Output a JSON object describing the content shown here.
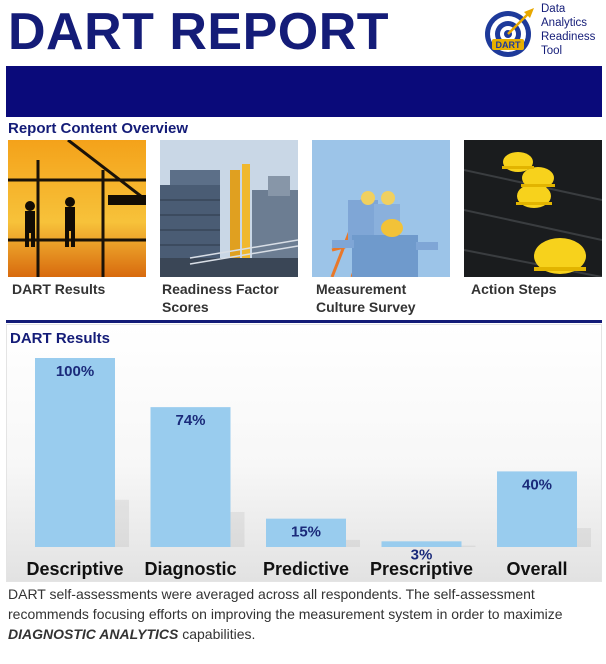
{
  "header": {
    "title": "DART REPORT",
    "logo_badge": "DART",
    "logo_lines": [
      "Data",
      "Analytics",
      "Readiness",
      "Tool"
    ]
  },
  "overview": {
    "title": "Report Content Overview",
    "items": [
      {
        "label_lines": [
          "DART Results"
        ],
        "icon": "construction-workers-sunset-image"
      },
      {
        "label_lines": [
          "Readiness Factor",
          "Scores"
        ],
        "icon": "industrial-plant-image"
      },
      {
        "label_lines": [
          "Measurement",
          "Culture Survey"
        ],
        "icon": "workers-hardhats-image"
      },
      {
        "label_lines": [
          "Action Steps"
        ],
        "icon": "yellow-hardhats-image"
      }
    ]
  },
  "results": {
    "title": "DART Results"
  },
  "colors": {
    "brand_navy": "#141C78",
    "band": "#0A0A7A",
    "bar": "#99CCEE",
    "bar_label": "#1A2A7A"
  },
  "chart_data": {
    "type": "bar",
    "title": "DART Results",
    "categories": [
      "Descriptive",
      "Diagnostic",
      "Predictive",
      "Prescriptive",
      "Overall"
    ],
    "values": [
      100,
      74,
      15,
      3,
      40
    ],
    "data_labels": [
      "100%",
      "74%",
      "15%",
      "3%",
      "40%"
    ],
    "ylim": [
      0,
      100
    ],
    "grid": false,
    "legend": "none"
  },
  "summary": {
    "text_before": "DART self-assessments were averaged across all respondents. The self-assessment recommends focusing efforts on improving the measurement system in order to maximize ",
    "emphasis": "DIAGNOSTIC ANALYTICS",
    "text_after": " capabilities."
  }
}
